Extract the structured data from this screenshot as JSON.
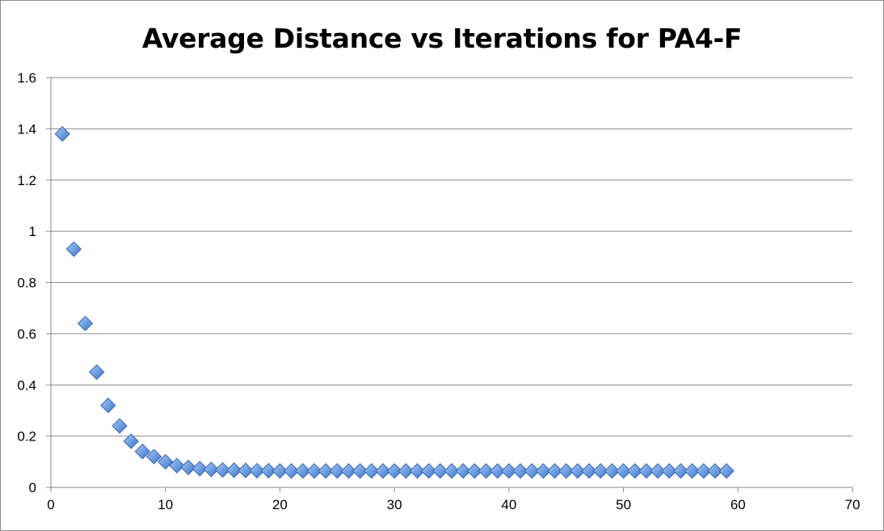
{
  "chart_data": {
    "type": "scatter",
    "title": "Average Distance vs Iterations for PA4-F",
    "xlabel": "",
    "ylabel": "",
    "xlim": [
      0,
      70
    ],
    "ylim": [
      0,
      1.6
    ],
    "x_ticks": [
      "0",
      "10",
      "20",
      "30",
      "40",
      "50",
      "60",
      "70"
    ],
    "y_ticks": [
      "0",
      "0.2",
      "0.4",
      "0.6",
      "0.8",
      "1",
      "1.2",
      "1.4",
      "1.6"
    ],
    "grid": "horizontal",
    "legend": "none",
    "marker": "diamond",
    "marker_color": "#5b8fd6",
    "series": [
      {
        "x": [
          1,
          2,
          3,
          4,
          5,
          6,
          7,
          8,
          9,
          10,
          11,
          12,
          13,
          14,
          15,
          16,
          17,
          18,
          19,
          20,
          21,
          22,
          23,
          24,
          25,
          26,
          27,
          28,
          29,
          30,
          31,
          32,
          33,
          34,
          35,
          36,
          37,
          38,
          39,
          40,
          41,
          42,
          43,
          44,
          45,
          46,
          47,
          48,
          49,
          50,
          51,
          52,
          53,
          54,
          55,
          56,
          57,
          58,
          59
        ],
        "y": [
          1.38,
          0.93,
          0.64,
          0.45,
          0.32,
          0.24,
          0.18,
          0.14,
          0.12,
          0.1,
          0.085,
          0.078,
          0.073,
          0.07,
          0.068,
          0.067,
          0.066,
          0.065,
          0.065,
          0.064,
          0.064,
          0.064,
          0.064,
          0.064,
          0.064,
          0.064,
          0.064,
          0.064,
          0.064,
          0.064,
          0.064,
          0.064,
          0.064,
          0.064,
          0.064,
          0.064,
          0.064,
          0.064,
          0.064,
          0.064,
          0.064,
          0.064,
          0.064,
          0.064,
          0.064,
          0.064,
          0.064,
          0.064,
          0.064,
          0.064,
          0.064,
          0.064,
          0.064,
          0.064,
          0.064,
          0.064,
          0.064,
          0.064,
          0.064
        ]
      }
    ]
  }
}
